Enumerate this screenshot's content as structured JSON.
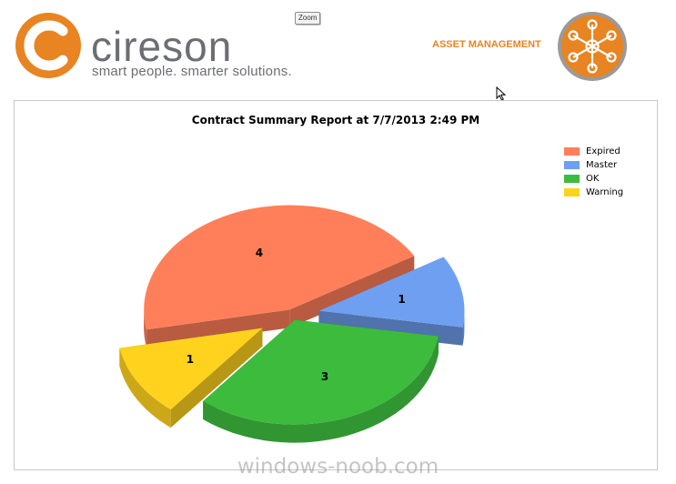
{
  "brand": {
    "name": "cireson",
    "tagline": "smart people. smarter solutions.",
    "color": "#e88421"
  },
  "toolbar": {
    "zoom_label": "Zoom"
  },
  "module": {
    "title": "ASSET MANAGEMENT",
    "icon": "network-hub-icon"
  },
  "chart_data": {
    "type": "pie",
    "title": "Contract Summary Report at 7/7/2013 2:49 PM",
    "style": "3d-exploded",
    "legend_position": "top-right",
    "slices": [
      {
        "label": "Expired",
        "value": 4,
        "color": "#ff7f5a"
      },
      {
        "label": "Master",
        "value": 1,
        "color": "#6f9ff0"
      },
      {
        "label": "OK",
        "value": 3,
        "color": "#3dbb3d"
      },
      {
        "label": "Warning",
        "value": 1,
        "color": "#ffd21e"
      }
    ]
  },
  "watermark": "windows-noob.com"
}
